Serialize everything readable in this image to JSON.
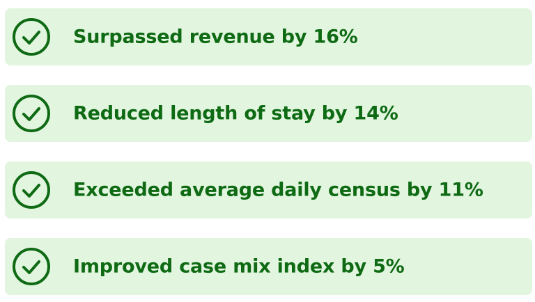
{
  "accent_color": "#0f6a14",
  "card_background": "#e2f5df",
  "items": [
    {
      "icon": "check-circle-icon",
      "text": "Surpassed revenue by 16%"
    },
    {
      "icon": "check-circle-icon",
      "text": "Reduced length of stay by 14%"
    },
    {
      "icon": "check-circle-icon",
      "text": "Exceeded average daily census by 11%"
    },
    {
      "icon": "check-circle-icon",
      "text": "Improved case mix index by 5%"
    }
  ]
}
